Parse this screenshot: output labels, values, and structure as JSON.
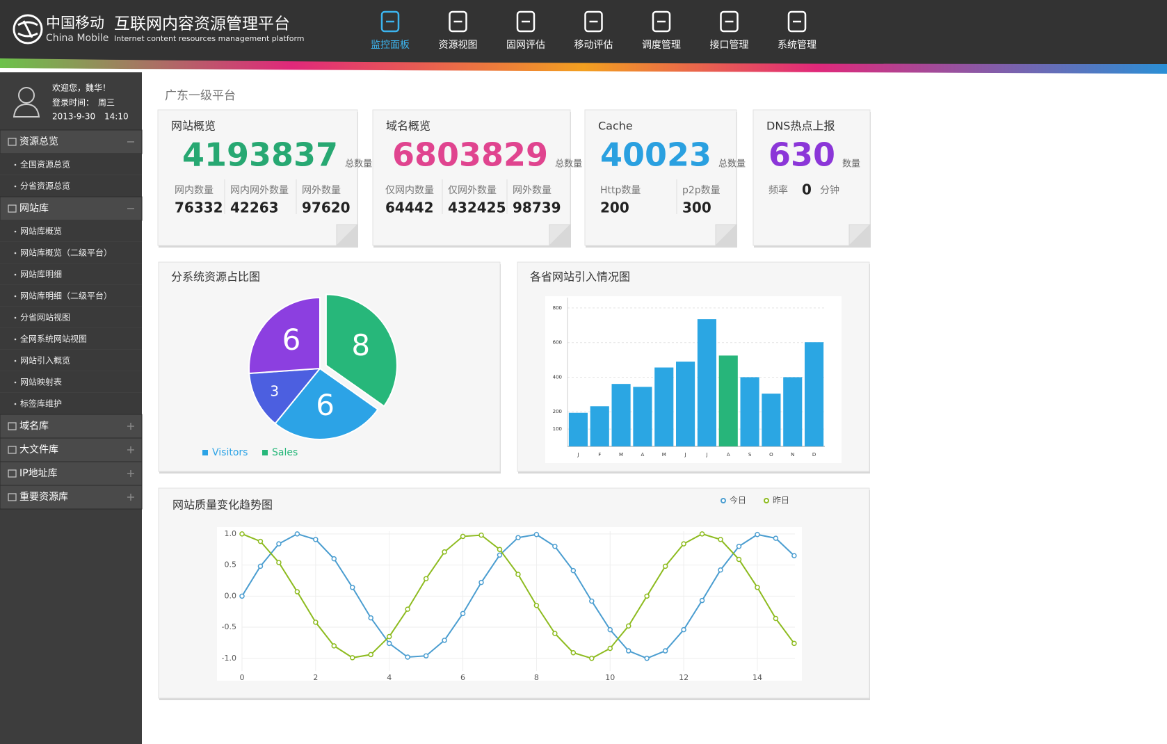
{
  "header": {
    "logo_cn": "中国移动",
    "logo_en": "China Mobile",
    "title": "互联网内容资源管理平台",
    "subtitle": "Internet content resources management platform",
    "nav": [
      "监控面板",
      "资源视图",
      "固网评估",
      "移动评估",
      "调度管理",
      "接口管理",
      "系统管理"
    ]
  },
  "sidebar": {
    "welcome": "欢迎您，魏华！",
    "login_label": "登录时间：",
    "login_day": "周三",
    "login_date": "2013-9-30",
    "login_time": "14:10",
    "menu": [
      {
        "label": "资源总览",
        "items": [
          "全国资源总览",
          "分省资源总览"
        ]
      },
      {
        "label": "网站库",
        "items": [
          "网站库概览",
          "网站库概览（二级平台）",
          "网站库明细",
          "网站库明细（二级平台）",
          "分省网站视图",
          "全网系统网站视图",
          "网站引入概览",
          "网站映射表",
          "标签库维护"
        ]
      },
      {
        "label": "域名库"
      },
      {
        "label": "大文件库"
      },
      {
        "label": "IP地址库"
      },
      {
        "label": "重要资源库"
      }
    ]
  },
  "page_title": "广东一级平台",
  "stats": [
    {
      "title": "网站概览",
      "total": 4193837,
      "total_label": "总数量",
      "color": "#27a872",
      "items": [
        {
          "label": "网内数量",
          "value": 76332
        },
        {
          "label": "网内网外数量",
          "value": 42263
        },
        {
          "label": "网外数量",
          "value": 97620
        }
      ]
    },
    {
      "title": "域名概览",
      "total": 6803829,
      "total_label": "总数量",
      "color": "#e0448f",
      "items": [
        {
          "label": "仅网内数量",
          "value": 64442
        },
        {
          "label": "仅网外数量",
          "value": 432425
        },
        {
          "label": "网外数量",
          "value": 98739
        }
      ]
    },
    {
      "title": "Cache",
      "total": 40023,
      "total_label": "总数量",
      "color": "#2aa0e0",
      "items": [
        {
          "label": "Http数量",
          "value": 200
        },
        {
          "label": "p2p数量",
          "value": 300
        }
      ]
    },
    {
      "title": "DNS热点上报",
      "total": 630,
      "total_label": "数量",
      "color": "#8b36d8",
      "items": [
        {
          "label": "频率",
          "value": 0,
          "unit": "分钟"
        }
      ]
    }
  ],
  "chart_data": [
    {
      "type": "pie",
      "title": "分系统资源占比图",
      "values": [
        8,
        6,
        3,
        6
      ],
      "colors": [
        "#27b77a",
        "#2ca3e6",
        "#4c5fe0",
        "#8c3fe0"
      ],
      "legend": [
        {
          "name": "Visitors",
          "color": "#2ca3e6"
        },
        {
          "name": "Sales",
          "color": "#27b77a"
        }
      ]
    },
    {
      "type": "bar",
      "title": "各省网站引入情况图",
      "categories": [
        "J",
        "F",
        "M",
        "A",
        "M",
        "J",
        "J",
        "A",
        "S",
        "O",
        "N",
        "D"
      ],
      "values": [
        194,
        232,
        361,
        344,
        456,
        490,
        735,
        525,
        400,
        305,
        400,
        602
      ],
      "colors": [
        "#2ba6e3",
        "#2ba6e3",
        "#2ba6e3",
        "#2ba6e3",
        "#2ba6e3",
        "#2ba6e3",
        "#2ba6e3",
        "#27b57a",
        "#2ba6e3",
        "#2ba6e3",
        "#2ba6e3",
        "#2ba6e3"
      ],
      "ylim": [
        0,
        860
      ],
      "yticks": [
        100,
        200,
        400,
        600,
        800
      ],
      "grid": true
    },
    {
      "type": "line",
      "title": "网站质量变化趋势图",
      "x": [
        0,
        0.5,
        1,
        1.5,
        2,
        2.5,
        3,
        3.5,
        4,
        4.5,
        5,
        5.5,
        6,
        6.5,
        7,
        7.5,
        8,
        8.5,
        9,
        9.5,
        10,
        10.5,
        11,
        11.5,
        12,
        12.5,
        13,
        13.5,
        14,
        14.5,
        15
      ],
      "series": [
        {
          "name": "今日",
          "color": "#4a9dd0",
          "values": [
            0,
            0.48,
            0.84,
            1.0,
            0.91,
            0.6,
            0.14,
            -0.35,
            -0.76,
            -0.98,
            -0.96,
            -0.71,
            -0.28,
            0.22,
            0.66,
            0.94,
            0.99,
            0.8,
            0.41,
            -0.08,
            -0.54,
            -0.88,
            -1.0,
            -0.88,
            -0.54,
            -0.07,
            0.42,
            0.8,
            0.99,
            0.93,
            0.65
          ]
        },
        {
          "name": "昨日",
          "color": "#8dbb1f",
          "values": [
            1.0,
            0.88,
            0.54,
            0.07,
            -0.42,
            -0.8,
            -0.99,
            -0.94,
            -0.65,
            -0.21,
            0.28,
            0.71,
            0.96,
            0.98,
            0.75,
            0.35,
            -0.15,
            -0.6,
            -0.91,
            -1.0,
            -0.84,
            -0.48,
            0.0,
            0.48,
            0.84,
            1.0,
            0.91,
            0.59,
            0.14,
            -0.36,
            -0.76
          ]
        }
      ],
      "xlim": [
        -0.68,
        15.21
      ],
      "ylim": [
        -1.36,
        1.11
      ],
      "xticks": [
        0,
        2,
        4,
        6,
        8,
        10,
        12,
        14
      ],
      "yticks": [
        {
          "value": 1,
          "label": "1.0"
        },
        {
          "value": 0.5,
          "label": "0.5"
        },
        {
          "value": 0,
          "label": "0.0"
        },
        {
          "value": -0.5,
          "label": "-0.5"
        },
        {
          "value": -1,
          "label": "-1.0"
        }
      ],
      "grid": true
    }
  ]
}
